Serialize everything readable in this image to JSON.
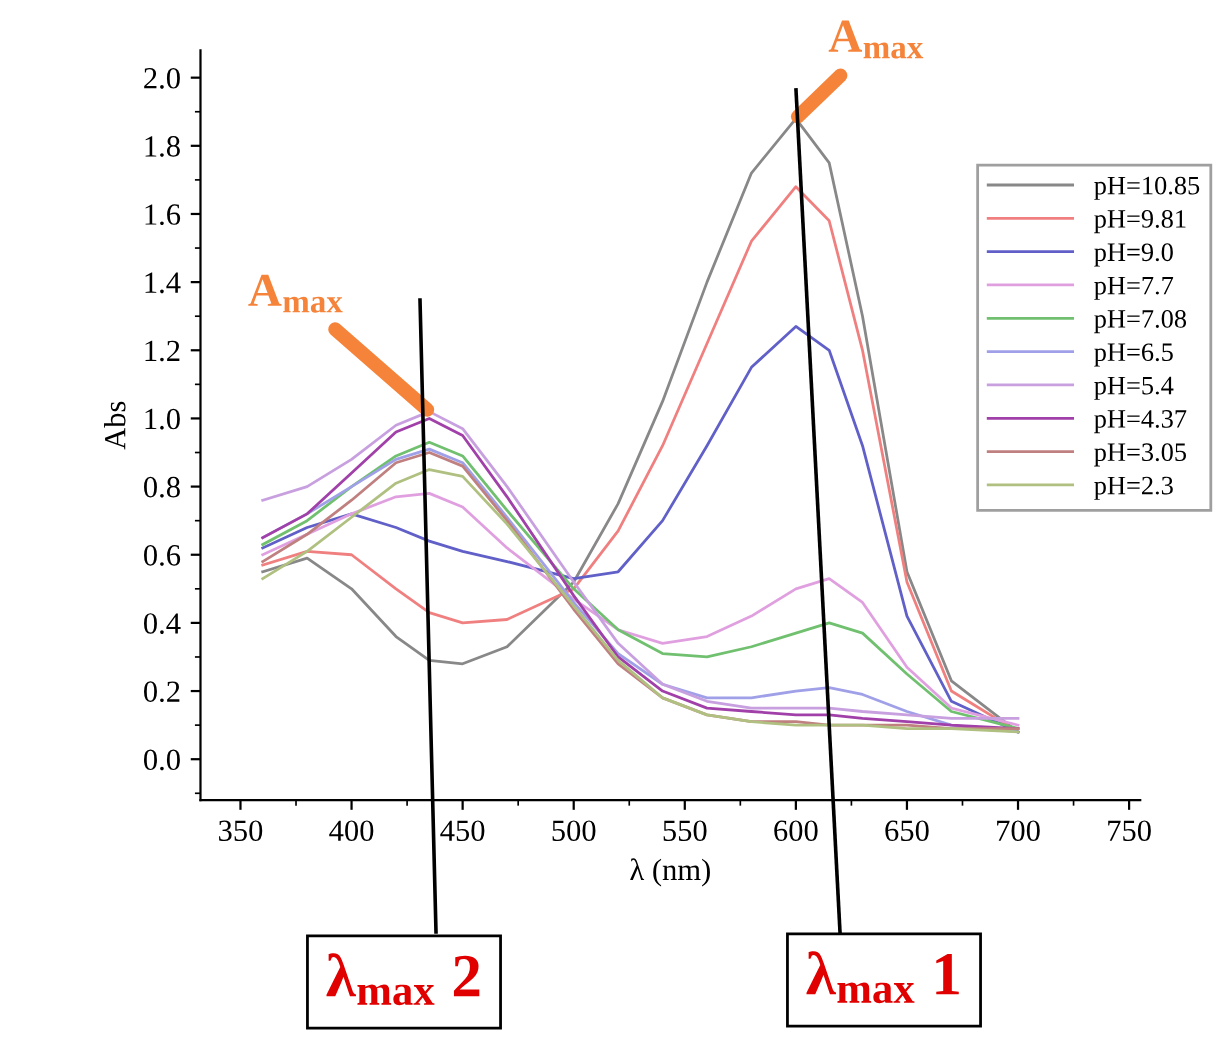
{
  "chart_data": {
    "type": "line",
    "xlabel": "λ (nm)",
    "ylabel": "Abs",
    "x": [
      360,
      380,
      400,
      420,
      435,
      450,
      470,
      500,
      520,
      540,
      560,
      580,
      600,
      615,
      630,
      650,
      670,
      700
    ],
    "series": [
      {
        "name": "pH=10.85",
        "color": "#888888",
        "values": [
          0.55,
          0.59,
          0.5,
          0.36,
          0.29,
          0.28,
          0.33,
          0.52,
          0.75,
          1.05,
          1.4,
          1.72,
          1.88,
          1.75,
          1.3,
          0.55,
          0.23,
          0.08
        ]
      },
      {
        "name": "pH=9.81",
        "color": "#f08080",
        "values": [
          0.57,
          0.61,
          0.6,
          0.5,
          0.43,
          0.4,
          0.41,
          0.5,
          0.67,
          0.92,
          1.22,
          1.52,
          1.68,
          1.58,
          1.2,
          0.52,
          0.2,
          0.08
        ]
      },
      {
        "name": "pH=9.0",
        "color": "#6060c8",
        "values": [
          0.62,
          0.68,
          0.72,
          0.68,
          0.64,
          0.61,
          0.58,
          0.53,
          0.55,
          0.7,
          0.92,
          1.15,
          1.27,
          1.2,
          0.92,
          0.42,
          0.17,
          0.08
        ]
      },
      {
        "name": "pH=7.7",
        "color": "#e0a0e0",
        "values": [
          0.6,
          0.66,
          0.72,
          0.77,
          0.78,
          0.74,
          0.62,
          0.47,
          0.38,
          0.34,
          0.36,
          0.42,
          0.5,
          0.53,
          0.46,
          0.27,
          0.15,
          0.1
        ]
      },
      {
        "name": "pH=7.08",
        "color": "#70c070",
        "values": [
          0.63,
          0.7,
          0.8,
          0.89,
          0.93,
          0.89,
          0.73,
          0.5,
          0.38,
          0.31,
          0.3,
          0.33,
          0.37,
          0.4,
          0.37,
          0.25,
          0.14,
          0.09
        ]
      },
      {
        "name": "pH=6.5",
        "color": "#a0a0e8",
        "values": [
          0.65,
          0.72,
          0.8,
          0.88,
          0.91,
          0.87,
          0.71,
          0.46,
          0.31,
          0.22,
          0.18,
          0.18,
          0.2,
          0.21,
          0.19,
          0.14,
          0.1,
          0.08
        ]
      },
      {
        "name": "pH=5.4",
        "color": "#c8a0e0",
        "values": [
          0.76,
          0.8,
          0.88,
          0.98,
          1.02,
          0.97,
          0.8,
          0.52,
          0.34,
          0.22,
          0.17,
          0.15,
          0.15,
          0.15,
          0.14,
          0.13,
          0.12,
          0.12
        ]
      },
      {
        "name": "pH=4.37",
        "color": "#a040a8",
        "values": [
          0.65,
          0.72,
          0.84,
          0.96,
          1.0,
          0.95,
          0.77,
          0.48,
          0.3,
          0.2,
          0.15,
          0.14,
          0.13,
          0.13,
          0.12,
          0.11,
          0.1,
          0.09
        ]
      },
      {
        "name": "pH=3.05",
        "color": "#c08080",
        "values": [
          0.58,
          0.66,
          0.76,
          0.87,
          0.9,
          0.86,
          0.7,
          0.44,
          0.28,
          0.18,
          0.13,
          0.11,
          0.11,
          0.1,
          0.1,
          0.1,
          0.09,
          0.09
        ]
      },
      {
        "name": "pH=2.3",
        "color": "#b0c080",
        "values": [
          0.53,
          0.61,
          0.71,
          0.81,
          0.85,
          0.83,
          0.69,
          0.45,
          0.29,
          0.18,
          0.13,
          0.11,
          0.1,
          0.1,
          0.1,
          0.09,
          0.09,
          0.08
        ]
      }
    ],
    "xlim": [
      332,
      755
    ],
    "xticks": [
      350,
      400,
      450,
      500,
      550,
      600,
      650,
      700,
      750
    ],
    "ylim": [
      -0.12,
      2.08
    ],
    "yticks": [
      {
        "value": 0,
        "label": "0.0"
      },
      0.2,
      0.4,
      0.6,
      0.8,
      {
        "value": 1,
        "label": "1.0"
      },
      1.2,
      1.4,
      1.6,
      1.8,
      {
        "value": 2,
        "label": "2.0"
      }
    ],
    "legend": "top right",
    "line_style": "solid",
    "annotations": [
      {
        "text": "A$_{max}$",
        "x": 435,
        "y": 1.02
      },
      {
        "text": "A$_{max}$",
        "x": 600,
        "y": 1.88
      },
      "λ$_{max}$ 2",
      "λ$_{max}$ 1"
    ]
  }
}
